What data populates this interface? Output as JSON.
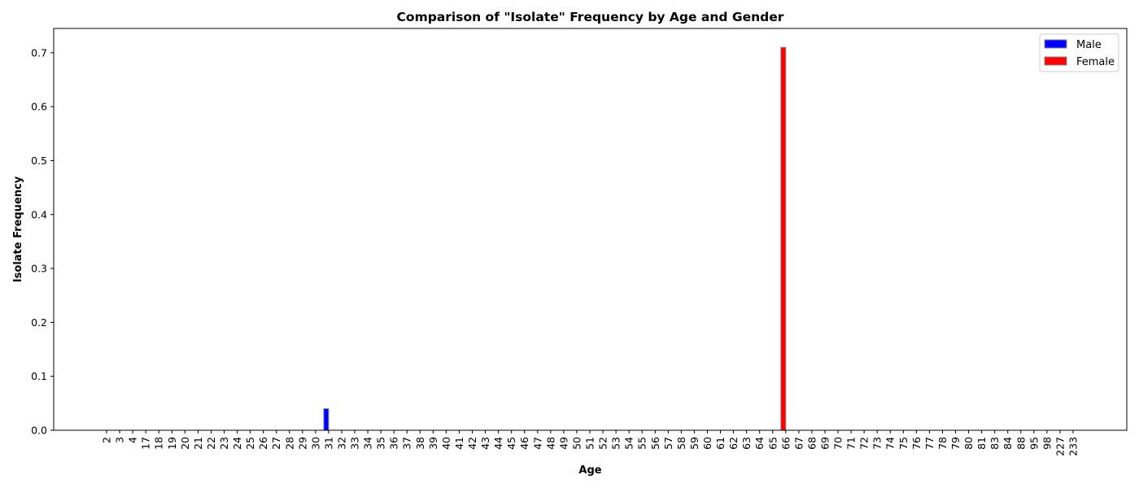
{
  "chart_data": {
    "type": "bar",
    "title": "Comparison of \"Isolate\" Frequency by Age and Gender",
    "xlabel": "Age",
    "ylabel": "Isolate Frequency",
    "ylim": [
      0,
      0.745
    ],
    "yticks": [
      0.0,
      0.1,
      0.2,
      0.3,
      0.4,
      0.5,
      0.6,
      0.7
    ],
    "ytick_labels": [
      "0.0",
      "0.1",
      "0.2",
      "0.3",
      "0.4",
      "0.5",
      "0.6",
      "0.7"
    ],
    "categories": [
      "2",
      "3",
      "4",
      "17",
      "18",
      "19",
      "20",
      "21",
      "22",
      "23",
      "24",
      "25",
      "26",
      "27",
      "28",
      "29",
      "30",
      "31",
      "32",
      "33",
      "34",
      "35",
      "36",
      "37",
      "38",
      "39",
      "40",
      "41",
      "42",
      "43",
      "44",
      "45",
      "46",
      "47",
      "48",
      "49",
      "50",
      "51",
      "52",
      "53",
      "54",
      "55",
      "56",
      "57",
      "58",
      "59",
      "60",
      "61",
      "62",
      "63",
      "64",
      "65",
      "66",
      "67",
      "68",
      "69",
      "70",
      "71",
      "72",
      "73",
      "74",
      "75",
      "76",
      "77",
      "78",
      "79",
      "80",
      "81",
      "83",
      "84",
      "88",
      "95",
      "98",
      "227",
      "233"
    ],
    "series": [
      {
        "name": "Male",
        "color": "#0000ff",
        "values": [
          0,
          0,
          0,
          0,
          0,
          0,
          0,
          0,
          0,
          0,
          0,
          0,
          0,
          0,
          0,
          0,
          0,
          0.04,
          0,
          0,
          0,
          0,
          0,
          0,
          0,
          0,
          0,
          0,
          0,
          0,
          0,
          0,
          0,
          0,
          0,
          0,
          0,
          0,
          0,
          0,
          0,
          0,
          0,
          0,
          0,
          0,
          0,
          0,
          0,
          0,
          0,
          0,
          0,
          0,
          0,
          0,
          0,
          0,
          0,
          0,
          0,
          0,
          0,
          0,
          0,
          0,
          0,
          0,
          0,
          0,
          0,
          0,
          0,
          0,
          0
        ]
      },
      {
        "name": "Female",
        "color": "#ff0000",
        "values": [
          0,
          0,
          0,
          0,
          0,
          0,
          0,
          0,
          0,
          0,
          0,
          0,
          0,
          0,
          0,
          0,
          0,
          0,
          0,
          0,
          0,
          0,
          0,
          0,
          0,
          0,
          0,
          0,
          0,
          0,
          0,
          0,
          0,
          0,
          0,
          0,
          0,
          0,
          0,
          0,
          0,
          0,
          0,
          0,
          0,
          0,
          0,
          0,
          0,
          0,
          0,
          0,
          0.71,
          0,
          0,
          0,
          0,
          0,
          0,
          0,
          0,
          0,
          0,
          0,
          0,
          0,
          0,
          0,
          0,
          0,
          0,
          0,
          0,
          0,
          0
        ]
      }
    ],
    "legend_position": "top-right",
    "grid": false
  }
}
